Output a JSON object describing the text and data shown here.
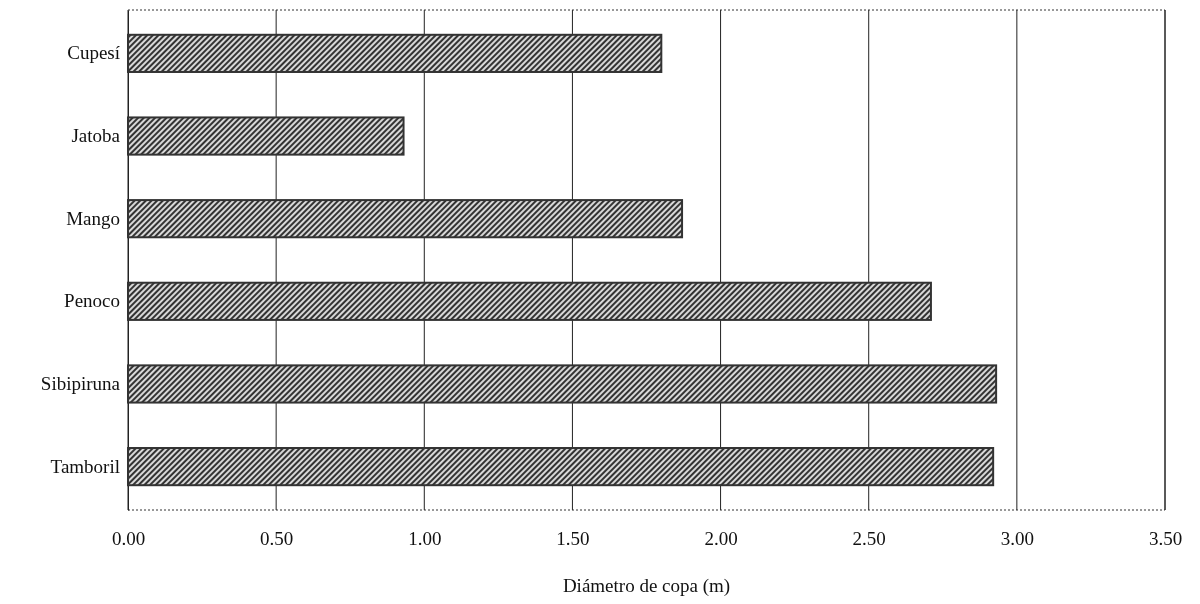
{
  "chart_data": {
    "type": "bar",
    "orientation": "horizontal",
    "xlabel": "Diámetro de copa (m)",
    "categories": [
      "Cupesí",
      "Jatoba",
      "Mango",
      "Penoco",
      "Sibipiruna",
      "Tamboril"
    ],
    "values": [
      1.8,
      0.93,
      1.87,
      2.71,
      2.93,
      2.92
    ],
    "color": "#333333",
    "xlim": [
      0,
      3.5
    ],
    "xticks": [
      {
        "value": 0,
        "label": "0.00"
      },
      {
        "value": 0.5,
        "label": "0.50"
      },
      {
        "value": 1,
        "label": "1.00"
      },
      {
        "value": 1.5,
        "label": "1.50"
      },
      {
        "value": 2,
        "label": "2.00"
      },
      {
        "value": 2.5,
        "label": "2.50"
      },
      {
        "value": 3,
        "label": "3.00"
      },
      {
        "value": 3.5,
        "label": "3.50"
      }
    ],
    "grid": "x"
  }
}
